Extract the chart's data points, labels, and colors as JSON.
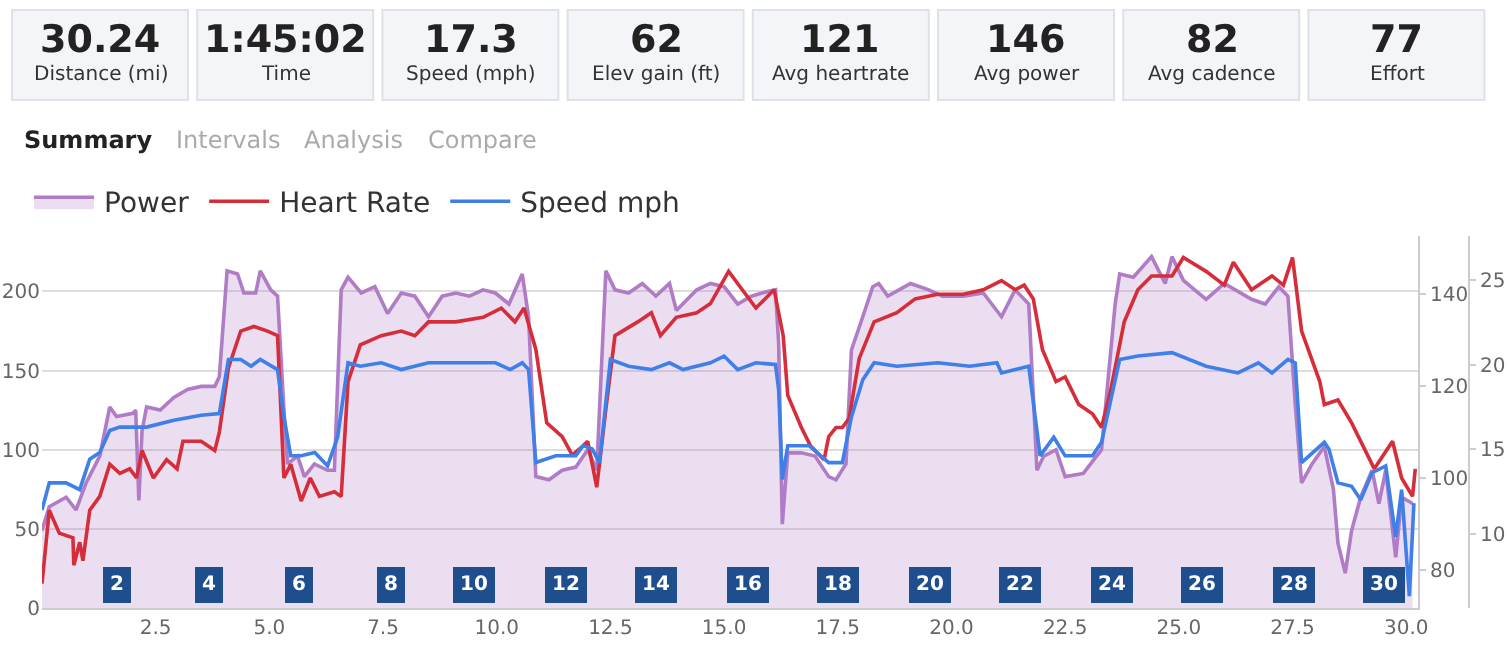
{
  "chart_data": [
    {
      "type": "other",
      "annotations": [
        "30.24",
        "Distance (mi)",
        "1:45:02",
        "Time",
        "17.3",
        "Speed (mph)",
        "62",
        "Elev gain (ft)",
        "121",
        "Avg heartrate",
        "146",
        "Avg power",
        "82",
        "Avg cadence",
        "77",
        "Effort",
        "Summary",
        "Intervals",
        "Analysis",
        "Compare"
      ]
    },
    {
      "type": "line",
      "legend": "top left",
      "grid": "y",
      "marker": "none",
      "line_style": "solid",
      "xlim": [
        0,
        30.26
      ],
      "xticks": [
        {
          "value": 2.5,
          "label": "2.5"
        },
        {
          "value": 5,
          "label": "5.0"
        },
        {
          "value": 7.5,
          "label": "7.5"
        },
        {
          "value": 10,
          "label": "10.0"
        },
        {
          "value": 12.5,
          "label": "12.5"
        },
        {
          "value": 15,
          "label": "15.0"
        },
        {
          "value": 17.5,
          "label": "17.5"
        },
        {
          "value": 20,
          "label": "20.0"
        },
        {
          "value": 22.5,
          "label": "22.5"
        },
        {
          "value": 25,
          "label": "25.0"
        },
        {
          "value": 27.5,
          "label": "27.5"
        },
        {
          "value": 30,
          "label": "30.0"
        }
      ],
      "ylim": [
        0,
        235
      ],
      "yticks": [
        0,
        50,
        100,
        150,
        200
      ],
      "y2lim": [
        71.7,
        152.7
      ],
      "y2ticks": [
        80,
        100,
        120,
        140
      ],
      "y3lim": [
        5.6,
        27.6
      ],
      "y3ticks": [
        10,
        15,
        20,
        25
      ],
      "series": [
        {
          "name": "Power",
          "type": "area",
          "color": "#b07cc6",
          "x": [
            0,
            0.16,
            0.53,
            0.75,
            0.97,
            1.27,
            1.49,
            1.64,
            2.0,
            2.06,
            2.13,
            2.2,
            2.3,
            2.6,
            2.9,
            3.2,
            3.5,
            3.8,
            3.9,
            4.07,
            4.3,
            4.44,
            4.7,
            4.8,
            5.03,
            5.18,
            5.32,
            5.4,
            5.62,
            5.77,
            5.99,
            6.28,
            6.43,
            6.58,
            6.73,
            7.02,
            7.32,
            7.6,
            7.9,
            8.2,
            8.5,
            8.8,
            9.1,
            9.4,
            9.7,
            9.97,
            10.27,
            10.56,
            10.7,
            10.86,
            11.15,
            11.44,
            11.74,
            12.0,
            12.2,
            12.4,
            12.6,
            12.9,
            13.2,
            13.5,
            13.8,
            13.95,
            14.4,
            14.7,
            15.0,
            15.3,
            15.6,
            15.83,
            16.13,
            16.2,
            16.28,
            16.4,
            16.7,
            17.0,
            17.3,
            17.46,
            17.68,
            17.8,
            18.05,
            18.27,
            18.4,
            18.6,
            19.1,
            19.5,
            19.8,
            20.26,
            20.7,
            21.1,
            21.4,
            21.7,
            21.88,
            22.03,
            22.3,
            22.5,
            22.9,
            23.3,
            23.6,
            23.7,
            24.0,
            24.4,
            24.7,
            24.85,
            25.1,
            25.6,
            26.0,
            26.6,
            26.9,
            27.2,
            27.4,
            27.56,
            27.7,
            27.93,
            28.2,
            28.4,
            28.5,
            28.66,
            28.8,
            29.0,
            29.25,
            29.4,
            29.55,
            29.77,
            29.9,
            30.14
          ],
          "values": [
            49,
            64,
            70,
            62,
            79,
            96,
            127,
            121,
            123,
            125,
            68,
            112,
            127,
            125,
            133,
            138,
            140,
            140,
            146,
            213,
            211,
            199,
            199,
            213,
            201,
            197,
            125,
            91,
            96,
            83,
            91,
            87,
            87,
            201,
            209,
            199,
            203,
            186,
            199,
            197,
            184,
            197,
            199,
            197,
            201,
            199,
            192,
            211,
            184,
            83,
            81,
            87,
            89,
            100,
            87,
            213,
            201,
            199,
            205,
            197,
            205,
            188,
            201,
            205,
            203,
            192,
            197,
            199,
            201,
            167,
            53,
            98,
            98,
            96,
            83,
            81,
            91,
            163,
            184,
            203,
            205,
            197,
            205,
            201,
            197,
            197,
            199,
            184,
            201,
            192,
            87,
            96,
            100,
            83,
            85,
            100,
            192,
            211,
            209,
            222,
            205,
            222,
            207,
            195,
            205,
            195,
            192,
            203,
            197,
            129,
            79,
            91,
            102,
            75,
            41,
            22,
            49,
            70,
            87,
            66,
            87,
            32,
            70,
            66
          ]
        },
        {
          "name": "Heart Rate",
          "axis": "y2",
          "color": "#d62d3a",
          "x": [
            0,
            0.16,
            0.38,
            0.68,
            0.7,
            0.83,
            0.9,
            1.05,
            1.27,
            1.49,
            1.71,
            1.93,
            2.08,
            2.2,
            2.45,
            2.74,
            2.97,
            3.1,
            3.5,
            3.8,
            3.9,
            4.1,
            4.37,
            4.66,
            4.96,
            5.18,
            5.32,
            5.47,
            5.7,
            5.9,
            6.1,
            6.43,
            6.58,
            6.73,
            7.0,
            7.46,
            7.9,
            8.2,
            8.5,
            9.1,
            9.7,
            10.1,
            10.4,
            10.6,
            10.86,
            11.1,
            11.44,
            11.66,
            11.9,
            12.0,
            12.2,
            12.4,
            12.6,
            13.1,
            13.4,
            13.6,
            13.95,
            14.4,
            14.7,
            15.1,
            15.4,
            15.7,
            16.1,
            16.3,
            16.4,
            16.7,
            16.9,
            17.2,
            17.3,
            17.46,
            17.6,
            17.75,
            17.97,
            18.3,
            18.8,
            19.2,
            19.7,
            20.26,
            20.7,
            21.1,
            21.4,
            21.6,
            21.8,
            22.0,
            22.3,
            22.5,
            22.8,
            23.1,
            23.3,
            23.5,
            23.8,
            24.1,
            24.4,
            24.85,
            25.1,
            25.6,
            26.0,
            26.2,
            26.6,
            27.05,
            27.3,
            27.5,
            27.7,
            28.1,
            28.2,
            28.5,
            28.8,
            29.3,
            29.7,
            29.9,
            30.14,
            30.2
          ],
          "values": [
            77,
            93,
            88,
            87,
            81,
            86,
            82,
            93,
            96,
            103,
            101,
            102,
            100,
            106,
            100,
            104,
            102,
            108,
            108,
            106,
            110,
            124,
            132,
            133,
            132,
            131,
            100,
            103,
            95,
            100,
            96,
            97,
            96,
            121,
            129,
            131,
            132,
            131,
            134,
            134,
            135,
            137,
            134,
            137,
            128,
            112,
            109,
            105,
            107,
            108,
            98,
            115,
            131,
            134,
            136,
            131,
            135,
            136,
            138,
            145,
            141,
            137,
            141,
            131,
            118,
            111,
            107,
            104,
            109,
            111,
            111,
            113,
            126,
            134,
            136,
            139,
            140,
            140,
            141,
            143,
            141,
            142,
            139,
            128,
            121,
            122,
            116,
            114,
            111,
            119,
            134,
            141,
            144,
            144,
            148,
            145,
            142,
            147,
            141,
            144,
            142,
            148,
            132,
            121,
            116,
            117,
            112,
            102,
            108,
            100,
            96,
            102
          ]
        },
        {
          "name": "Speed mph",
          "axis": "y3",
          "color": "#3f7fe8",
          "x": [
            0,
            0.16,
            0.53,
            0.83,
            1.05,
            1.27,
            1.49,
            1.71,
            2.3,
            2.9,
            3.5,
            3.9,
            4.1,
            4.37,
            4.6,
            4.8,
            5.18,
            5.32,
            5.47,
            5.7,
            6.0,
            6.28,
            6.5,
            6.73,
            7.0,
            7.46,
            7.9,
            8.5,
            9.4,
            9.97,
            10.3,
            10.56,
            10.7,
            10.86,
            11.3,
            11.74,
            11.9,
            12.1,
            12.26,
            12.5,
            12.9,
            13.4,
            13.8,
            14.1,
            14.7,
            15.0,
            15.3,
            15.7,
            16.13,
            16.2,
            16.28,
            16.4,
            16.87,
            17.3,
            17.6,
            17.8,
            18.05,
            18.3,
            18.8,
            19.7,
            20.4,
            21.0,
            21.1,
            21.7,
            21.95,
            22.25,
            22.5,
            23.1,
            23.3,
            23.7,
            24.1,
            24.85,
            25.6,
            26.3,
            26.75,
            27.05,
            27.4,
            27.56,
            27.7,
            28.2,
            28.3,
            28.5,
            28.8,
            29.0,
            29.25,
            29.55,
            29.77,
            29.9,
            30.07,
            30.17
          ],
          "values": [
            11.4,
            13.0,
            13.0,
            12.6,
            14.4,
            14.8,
            16.1,
            16.3,
            16.3,
            16.7,
            17.0,
            17.1,
            20.3,
            20.3,
            19.9,
            20.3,
            19.7,
            16.9,
            14.6,
            14.6,
            14.8,
            14.0,
            15.7,
            20.1,
            19.9,
            20.1,
            19.7,
            20.1,
            20.1,
            20.1,
            19.7,
            20.1,
            19.7,
            14.2,
            14.6,
            14.6,
            15.2,
            15.0,
            14.2,
            20.3,
            19.9,
            19.7,
            20.1,
            19.7,
            20.1,
            20.5,
            19.7,
            20.1,
            20.0,
            18.5,
            13.2,
            15.2,
            15.2,
            14.2,
            14.2,
            16.9,
            19.1,
            20.1,
            19.9,
            20.1,
            19.9,
            20.1,
            19.5,
            19.9,
            14.6,
            15.7,
            14.6,
            14.6,
            15.4,
            20.3,
            20.5,
            20.7,
            19.9,
            19.5,
            20.1,
            19.5,
            20.3,
            20.1,
            14.2,
            15.4,
            15.0,
            13.0,
            12.8,
            12.0,
            13.6,
            14.0,
            9.8,
            12.6,
            6.3,
            11.8
          ]
        }
      ],
      "annotations": [
        {
          "text": "2",
          "x": 2,
          "y": 0
        },
        {
          "text": "4",
          "x": 4,
          "y": 0
        },
        {
          "text": "6",
          "x": 6,
          "y": 0
        },
        {
          "text": "8",
          "x": 8,
          "y": 0
        },
        {
          "text": "10",
          "x": 10,
          "y": 0
        },
        {
          "text": "12",
          "x": 12,
          "y": 0
        },
        {
          "text": "14",
          "x": 14,
          "y": 0
        },
        {
          "text": "16",
          "x": 16,
          "y": 0
        },
        {
          "text": "18",
          "x": 18,
          "y": 0
        },
        {
          "text": "20",
          "x": 20,
          "y": 0
        },
        {
          "text": "22",
          "x": 22,
          "y": 0
        },
        {
          "text": "24",
          "x": 24,
          "y": 0
        },
        {
          "text": "26",
          "x": 26,
          "y": 0
        },
        {
          "text": "28",
          "x": 28,
          "y": 0
        },
        {
          "text": "30",
          "x": 30,
          "y": 0
        }
      ]
    }
  ]
}
